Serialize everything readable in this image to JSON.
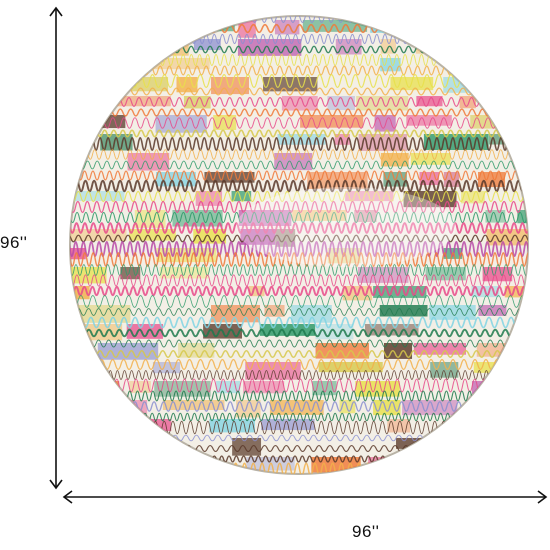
{
  "dimensions": {
    "height_label": "96''",
    "width_label": "96''"
  },
  "rug": {
    "shape": "round",
    "background_color": "#f3efe6",
    "stripe_colors": [
      "#7fd3e3",
      "#e84a8a",
      "#c63a66",
      "#8a8fd0",
      "#f07a3a",
      "#f2b04a",
      "#2e9a6a",
      "#1f7a4e",
      "#b84aa8",
      "#e8e04a",
      "#d6c84a",
      "#5a3a2a"
    ]
  }
}
